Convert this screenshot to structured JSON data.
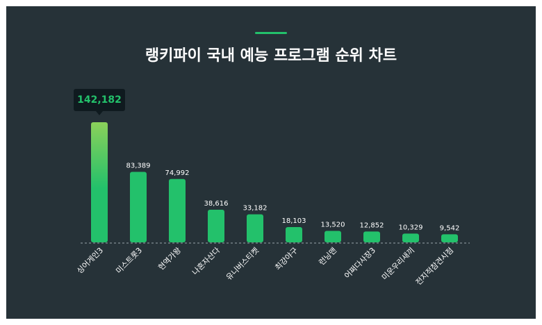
{
  "title": "랭키파이 국내 예능 프로그램 순위 차트",
  "colors": {
    "background": "#263238",
    "bar": "#23c16b",
    "bar_top_highlight": "#8bd05a",
    "text": "#ffffff",
    "baseline": "#9aa5ab",
    "tooltip_bg": "#0f1a1f",
    "tooltip_text": "#23c16b"
  },
  "tooltip": {
    "value_label": "142,182"
  },
  "chart_data": {
    "type": "bar",
    "title": "랭키파이 국내 예능 프로그램 순위 차트",
    "categories": [
      "싱어게인3",
      "미스트롯3",
      "현역가왕",
      "나혼자산다",
      "유니버스티켓",
      "최강야구",
      "런닝맨",
      "어쩌다사장3",
      "미운우리새끼",
      "전지적참견시점"
    ],
    "values": [
      142182,
      83389,
      74992,
      38616,
      33182,
      18103,
      13520,
      12852,
      10329,
      9542
    ],
    "value_labels": [
      "142,182",
      "83,389",
      "74,992",
      "38,616",
      "33,182",
      "18,103",
      "13,520",
      "12,852",
      "10,329",
      "9,542"
    ],
    "ylim": [
      0,
      142182
    ],
    "grid": false,
    "legend": "none"
  }
}
